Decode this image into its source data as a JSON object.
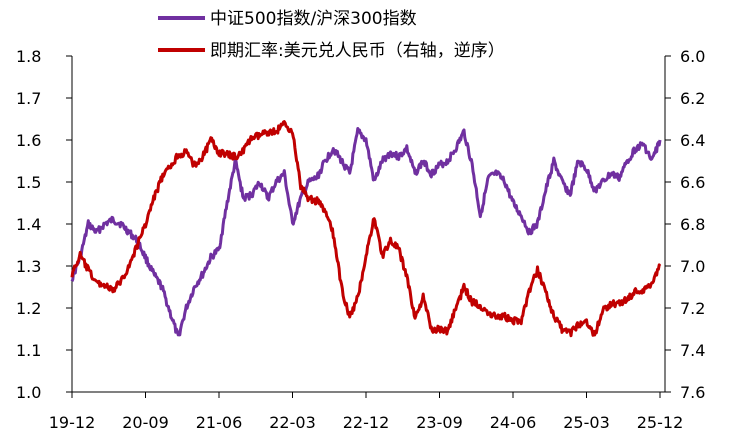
{
  "chart_data": {
    "type": "line",
    "title": "",
    "legend_position": "top",
    "grid": false,
    "x_ticks": [
      "19-12",
      "20-09",
      "21-06",
      "22-03",
      "22-12",
      "23-09",
      "24-06",
      "25-03",
      "25-12"
    ],
    "y_left": {
      "ticks": [
        "1.0",
        "1.1",
        "1.2",
        "1.3",
        "1.4",
        "1.5",
        "1.6",
        "1.7",
        "1.8"
      ],
      "range": [
        1.0,
        1.8
      ]
    },
    "y_right": {
      "ticks": [
        "6.0",
        "6.2",
        "6.4",
        "6.6",
        "6.8",
        "7.0",
        "7.2",
        "7.4",
        "7.6"
      ],
      "range": [
        6.0,
        7.6
      ],
      "inverted": true
    },
    "series": [
      {
        "name": "中证500指数/沪深300指数",
        "axis": "left",
        "color": "#7030A0",
        "points": [
          [
            "19-12",
            1.27
          ],
          [
            "20-01",
            1.32
          ],
          [
            "20-02",
            1.4
          ],
          [
            "20-03",
            1.38
          ],
          [
            "20-04",
            1.4
          ],
          [
            "20-05",
            1.41
          ],
          [
            "20-06",
            1.4
          ],
          [
            "20-07",
            1.38
          ],
          [
            "20-08",
            1.36
          ],
          [
            "20-09",
            1.32
          ],
          [
            "20-10",
            1.28
          ],
          [
            "20-11",
            1.25
          ],
          [
            "20-12",
            1.19
          ],
          [
            "21-01",
            1.13
          ],
          [
            "21-02",
            1.2
          ],
          [
            "21-03",
            1.25
          ],
          [
            "21-04",
            1.28
          ],
          [
            "21-05",
            1.32
          ],
          [
            "21-06",
            1.34
          ],
          [
            "21-07",
            1.45
          ],
          [
            "21-08",
            1.55
          ],
          [
            "21-09",
            1.46
          ],
          [
            "21-10",
            1.47
          ],
          [
            "21-11",
            1.5
          ],
          [
            "21-12",
            1.46
          ],
          [
            "22-01",
            1.5
          ],
          [
            "22-02",
            1.52
          ],
          [
            "22-03",
            1.4
          ],
          [
            "22-04",
            1.46
          ],
          [
            "22-05",
            1.5
          ],
          [
            "22-06",
            1.51
          ],
          [
            "22-07",
            1.55
          ],
          [
            "22-08",
            1.58
          ],
          [
            "22-09",
            1.55
          ],
          [
            "22-10",
            1.52
          ],
          [
            "22-11",
            1.62
          ],
          [
            "22-12",
            1.6
          ],
          [
            "23-01",
            1.5
          ],
          [
            "23-02",
            1.55
          ],
          [
            "23-03",
            1.57
          ],
          [
            "23-04",
            1.56
          ],
          [
            "23-05",
            1.58
          ],
          [
            "23-06",
            1.52
          ],
          [
            "23-07",
            1.55
          ],
          [
            "23-08",
            1.52
          ],
          [
            "23-09",
            1.54
          ],
          [
            "23-10",
            1.55
          ],
          [
            "23-11",
            1.58
          ],
          [
            "23-12",
            1.62
          ],
          [
            "24-01",
            1.54
          ],
          [
            "24-02",
            1.42
          ],
          [
            "24-03",
            1.51
          ],
          [
            "24-04",
            1.52
          ],
          [
            "24-05",
            1.5
          ],
          [
            "24-06",
            1.45
          ],
          [
            "24-07",
            1.42
          ],
          [
            "24-08",
            1.38
          ],
          [
            "24-09",
            1.4
          ],
          [
            "24-10",
            1.48
          ],
          [
            "24-11",
            1.55
          ],
          [
            "24-12",
            1.5
          ],
          [
            "25-01",
            1.47
          ],
          [
            "25-02",
            1.55
          ],
          [
            "25-03",
            1.53
          ],
          [
            "25-04",
            1.48
          ],
          [
            "25-05",
            1.5
          ],
          [
            "25-06",
            1.52
          ],
          [
            "25-07",
            1.51
          ],
          [
            "25-08",
            1.55
          ],
          [
            "25-09",
            1.58
          ],
          [
            "25-10",
            1.59
          ],
          [
            "25-11",
            1.55
          ],
          [
            "25-12",
            1.6
          ]
        ]
      },
      {
        "name": "即期汇率:美元兑人民币（右轴，逆序）",
        "axis": "right",
        "color": "#C00000",
        "points": [
          [
            "19-12",
            7.04
          ],
          [
            "20-01",
            6.95
          ],
          [
            "20-02",
            7.02
          ],
          [
            "20-03",
            7.08
          ],
          [
            "20-04",
            7.09
          ],
          [
            "20-05",
            7.12
          ],
          [
            "20-06",
            7.07
          ],
          [
            "20-07",
            7.0
          ],
          [
            "20-08",
            6.9
          ],
          [
            "20-09",
            6.8
          ],
          [
            "20-10",
            6.68
          ],
          [
            "20-11",
            6.58
          ],
          [
            "20-12",
            6.53
          ],
          [
            "21-01",
            6.47
          ],
          [
            "21-02",
            6.46
          ],
          [
            "21-03",
            6.52
          ],
          [
            "21-04",
            6.48
          ],
          [
            "21-05",
            6.4
          ],
          [
            "21-06",
            6.46
          ],
          [
            "21-07",
            6.47
          ],
          [
            "21-08",
            6.48
          ],
          [
            "21-09",
            6.45
          ],
          [
            "21-10",
            6.39
          ],
          [
            "21-11",
            6.38
          ],
          [
            "21-12",
            6.36
          ],
          [
            "22-01",
            6.36
          ],
          [
            "22-02",
            6.32
          ],
          [
            "22-03",
            6.36
          ],
          [
            "22-04",
            6.62
          ],
          [
            "22-05",
            6.68
          ],
          [
            "22-06",
            6.69
          ],
          [
            "22-07",
            6.74
          ],
          [
            "22-08",
            6.85
          ],
          [
            "22-09",
            7.1
          ],
          [
            "22-10",
            7.25
          ],
          [
            "22-11",
            7.15
          ],
          [
            "22-12",
            6.95
          ],
          [
            "23-01",
            6.77
          ],
          [
            "23-02",
            6.95
          ],
          [
            "23-03",
            6.88
          ],
          [
            "23-04",
            6.92
          ],
          [
            "23-05",
            7.05
          ],
          [
            "23-06",
            7.25
          ],
          [
            "23-07",
            7.15
          ],
          [
            "23-08",
            7.3
          ],
          [
            "23-09",
            7.3
          ],
          [
            "23-10",
            7.31
          ],
          [
            "23-11",
            7.2
          ],
          [
            "23-12",
            7.1
          ],
          [
            "24-01",
            7.17
          ],
          [
            "24-02",
            7.19
          ],
          [
            "24-03",
            7.22
          ],
          [
            "24-04",
            7.24
          ],
          [
            "24-05",
            7.24
          ],
          [
            "24-06",
            7.26
          ],
          [
            "24-07",
            7.26
          ],
          [
            "24-08",
            7.12
          ],
          [
            "24-09",
            7.02
          ],
          [
            "24-10",
            7.12
          ],
          [
            "24-11",
            7.24
          ],
          [
            "24-12",
            7.3
          ],
          [
            "25-01",
            7.32
          ],
          [
            "25-02",
            7.28
          ],
          [
            "25-03",
            7.26
          ],
          [
            "25-04",
            7.33
          ],
          [
            "25-05",
            7.21
          ],
          [
            "25-06",
            7.18
          ],
          [
            "25-07",
            7.18
          ],
          [
            "25-08",
            7.16
          ],
          [
            "25-09",
            7.12
          ],
          [
            "25-10",
            7.12
          ],
          [
            "25-11",
            7.08
          ],
          [
            "25-12",
            7.0
          ]
        ]
      }
    ]
  }
}
